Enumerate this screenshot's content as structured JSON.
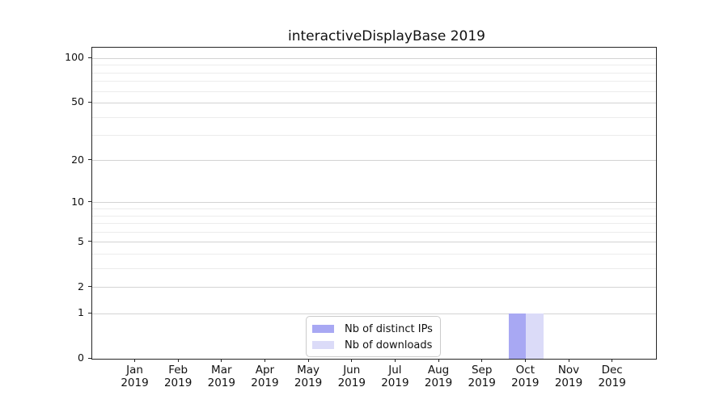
{
  "chart_data": {
    "type": "bar",
    "title": "interactiveDisplayBase 2019",
    "x": {
      "months": [
        "Jan",
        "Feb",
        "Mar",
        "Apr",
        "May",
        "Jun",
        "Jul",
        "Aug",
        "Sep",
        "Oct",
        "Nov",
        "Dec"
      ],
      "year": "2019"
    },
    "series": [
      {
        "name": "Nb of distinct IPs",
        "color": "#a8a8f3",
        "values": [
          0,
          0,
          0,
          0,
          0,
          0,
          0,
          0,
          0,
          1,
          0,
          0
        ]
      },
      {
        "name": "Nb of downloads",
        "color": "#dbdbf8",
        "values": [
          0,
          0,
          0,
          0,
          0,
          0,
          0,
          0,
          0,
          1,
          0,
          0
        ]
      }
    ],
    "y_axis": {
      "scale": "log1p",
      "major_ticks": [
        0,
        1,
        2,
        5,
        10,
        20,
        50,
        100
      ],
      "minor_ticks": [
        3,
        4,
        6,
        7,
        8,
        9,
        30,
        40,
        60,
        70,
        80,
        90
      ],
      "top_value": 118
    },
    "legend": {
      "position": "lower-center",
      "entries": [
        "Nb of distinct IPs",
        "Nb of downloads"
      ]
    },
    "grid": true
  },
  "colors": {
    "bar_distinct_ips": "#a8a8f3",
    "bar_downloads": "#dbdbf8",
    "grid_major": "#d3d3d3",
    "grid_minor": "#ececec",
    "spine": "#262626"
  }
}
